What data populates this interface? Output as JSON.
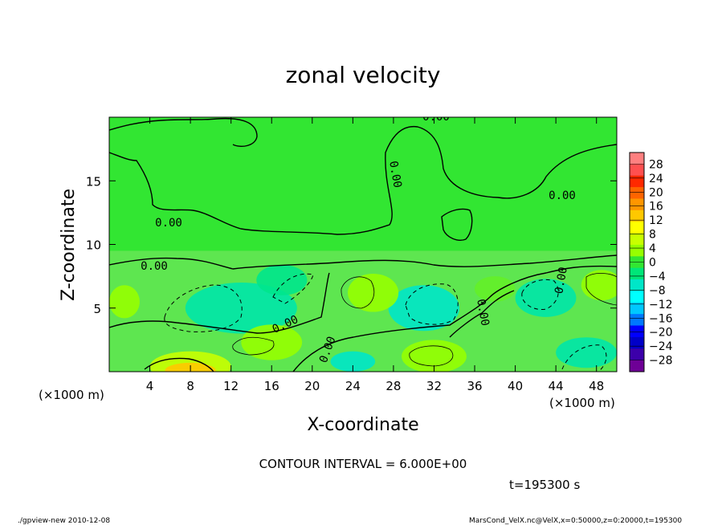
{
  "chart_data": {
    "type": "heatmap",
    "title": "zonal velocity",
    "xlabel": "X-coordinate",
    "ylabel": "Z-coordinate",
    "x_unit": "(×1000 m)",
    "z_unit": "(×1000 m)",
    "xlim": [
      0,
      50
    ],
    "ylim": [
      0,
      20
    ],
    "x_ticks": [
      4,
      8,
      12,
      16,
      20,
      24,
      28,
      32,
      36,
      40,
      44,
      48
    ],
    "y_ticks": [
      5,
      10,
      15
    ],
    "colorbar": {
      "ticks": [
        28,
        24,
        20,
        16,
        12,
        8,
        4,
        0,
        -4,
        -8,
        -12,
        -16,
        -20,
        -24,
        -28
      ],
      "colors": [
        "#ff8080",
        "#ff5050",
        "#ff2800",
        "#ff6400",
        "#ff9600",
        "#ffc800",
        "#ffff00",
        "#c8ff00",
        "#96ff00",
        "#32e632",
        "#00e678",
        "#00e6c8",
        "#00ffff",
        "#00c8ff",
        "#0078ff",
        "#0000ff",
        "#0000c8",
        "#3c00aa",
        "#6e0096"
      ]
    },
    "contour_interval": "CONTOUR INTERVAL = 6.000E+00",
    "contour_labels": [
      "0.00",
      "0.00",
      "0.00",
      "0.00",
      "0.00",
      "0.00",
      "0.00",
      "0.00",
      "0.00"
    ]
  },
  "time_label": "t=195300 s",
  "footer": {
    "left": "./gpview-new  2010-12-08",
    "right": "MarsCond_VelX.nc@VelX,x=0:50000,z=0:20000,t=195300"
  }
}
